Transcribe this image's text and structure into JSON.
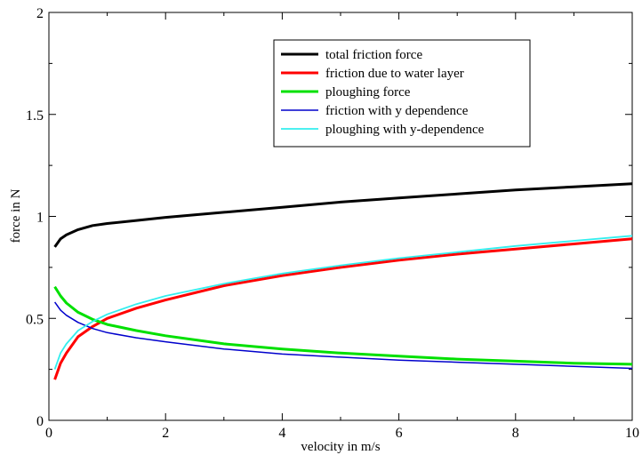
{
  "chart_data": {
    "type": "line",
    "title": "",
    "xlabel": "velocity in m/s",
    "ylabel": "force in N",
    "xlim": [
      0,
      10
    ],
    "ylim": [
      0,
      2
    ],
    "xticks": [
      "0",
      "2",
      "4",
      "6",
      "8",
      "10"
    ],
    "yticks": [
      "0",
      "0.5",
      "1",
      "1.5",
      "2"
    ],
    "grid": false,
    "legend_position": "top-right",
    "series": [
      {
        "name": "total friction force",
        "color": "#000000",
        "x": [
          0.1,
          0.2,
          0.3,
          0.5,
          0.75,
          1,
          1.5,
          2,
          3,
          4,
          5,
          6,
          7,
          8,
          9,
          10
        ],
        "y": [
          0.85,
          0.89,
          0.91,
          0.935,
          0.955,
          0.965,
          0.98,
          0.995,
          1.02,
          1.045,
          1.07,
          1.09,
          1.11,
          1.13,
          1.145,
          1.16
        ]
      },
      {
        "name": "friction due to water layer",
        "color": "#ff0000",
        "x": [
          0.1,
          0.2,
          0.3,
          0.5,
          0.75,
          1,
          1.5,
          2,
          3,
          4,
          5,
          6,
          7,
          8,
          9,
          10
        ],
        "y": [
          0.2,
          0.28,
          0.33,
          0.41,
          0.46,
          0.5,
          0.55,
          0.59,
          0.66,
          0.71,
          0.75,
          0.785,
          0.815,
          0.84,
          0.865,
          0.89
        ]
      },
      {
        "name": "ploughing force",
        "color": "#00e000",
        "x": [
          0.1,
          0.2,
          0.3,
          0.5,
          0.75,
          1,
          1.5,
          2,
          3,
          4,
          5,
          6,
          7,
          8,
          9,
          10
        ],
        "y": [
          0.655,
          0.61,
          0.575,
          0.53,
          0.495,
          0.47,
          0.44,
          0.415,
          0.375,
          0.35,
          0.33,
          0.315,
          0.3,
          0.29,
          0.28,
          0.275
        ]
      },
      {
        "name": "friction with y dependence",
        "color": "#0000cc",
        "x": [
          0.1,
          0.2,
          0.3,
          0.5,
          0.75,
          1,
          1.5,
          2,
          3,
          4,
          5,
          6,
          7,
          8,
          9,
          10
        ],
        "y": [
          0.58,
          0.54,
          0.515,
          0.48,
          0.45,
          0.43,
          0.405,
          0.385,
          0.35,
          0.325,
          0.31,
          0.295,
          0.285,
          0.275,
          0.265,
          0.255
        ]
      },
      {
        "name": "ploughing with y-dependence",
        "color": "#33eeee",
        "x": [
          0.1,
          0.2,
          0.3,
          0.5,
          0.75,
          1,
          1.5,
          2,
          3,
          4,
          5,
          6,
          7,
          8,
          9,
          10
        ],
        "y": [
          0.25,
          0.33,
          0.375,
          0.44,
          0.485,
          0.52,
          0.57,
          0.61,
          0.67,
          0.72,
          0.76,
          0.795,
          0.825,
          0.855,
          0.88,
          0.905
        ]
      }
    ]
  }
}
